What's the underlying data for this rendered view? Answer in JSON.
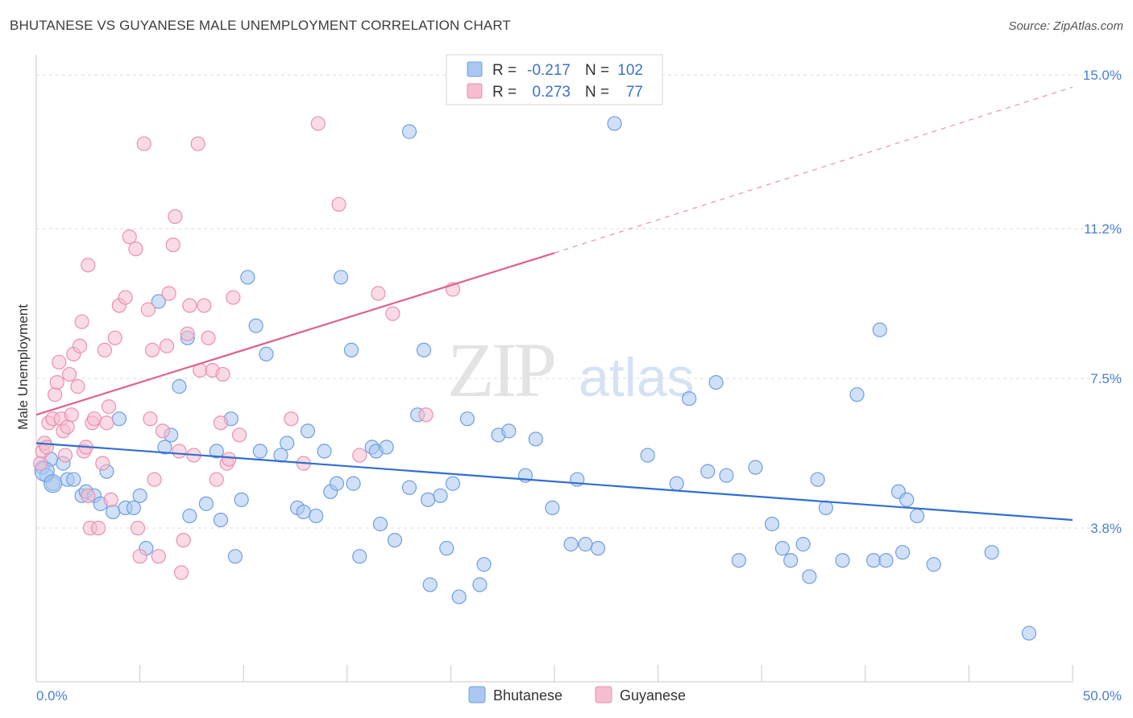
{
  "header": {
    "title": "BHUTANESE VS GUYANESE MALE UNEMPLOYMENT CORRELATION CHART",
    "source": "Source: ZipAtlas.com"
  },
  "watermark": {
    "zip": "ZIP",
    "atlas": "atlas"
  },
  "legend": {
    "rows": [
      {
        "r_label": "R =",
        "r_value": "-0.217",
        "n_label": "N =",
        "n_value": "102"
      },
      {
        "r_label": "R =",
        "r_value": "0.273",
        "n_label": "N =",
        "n_value": "77"
      }
    ]
  },
  "chart_data": {
    "type": "scatter",
    "title": "BHUTANESE VS GUYANESE MALE UNEMPLOYMENT CORRELATION CHART",
    "xlabel": "",
    "ylabel": "Male Unemployment",
    "xlim": [
      0,
      50
    ],
    "ylim": [
      0,
      15.5
    ],
    "x_tick_labels": [
      "0.0%",
      "50.0%"
    ],
    "y_ticks": [
      3.8,
      7.5,
      11.2,
      15.0
    ],
    "y_tick_labels": [
      "3.8%",
      "7.5%",
      "11.2%",
      "15.0%"
    ],
    "grid": true,
    "legend_position": "top-center",
    "series": [
      {
        "name": "Bhutanese",
        "color": "#a9c7f0",
        "edge": "#6e9fdf",
        "line_color": "#2f6fd0",
        "r": -0.217,
        "n": 102,
        "trend": {
          "x": [
            0,
            50
          ],
          "y": [
            5.9,
            4.0
          ]
        },
        "points": [
          [
            0.3,
            5.3
          ],
          [
            0.5,
            5.1
          ],
          [
            0.7,
            5.5
          ],
          [
            0.8,
            4.9
          ],
          [
            1.3,
            5.4
          ],
          [
            1.5,
            5.0
          ],
          [
            1.8,
            5.0
          ],
          [
            2.2,
            4.6
          ],
          [
            2.4,
            4.7
          ],
          [
            2.8,
            4.6
          ],
          [
            3.1,
            4.4
          ],
          [
            3.4,
            5.2
          ],
          [
            3.7,
            4.2
          ],
          [
            4.0,
            6.5
          ],
          [
            4.3,
            4.3
          ],
          [
            4.7,
            4.3
          ],
          [
            5.0,
            4.6
          ],
          [
            5.3,
            3.3
          ],
          [
            5.9,
            9.4
          ],
          [
            6.2,
            5.8
          ],
          [
            6.5,
            6.1
          ],
          [
            6.9,
            7.3
          ],
          [
            7.3,
            8.5
          ],
          [
            7.4,
            4.1
          ],
          [
            8.2,
            4.4
          ],
          [
            8.7,
            5.7
          ],
          [
            8.9,
            4.0
          ],
          [
            9.4,
            6.5
          ],
          [
            9.6,
            3.1
          ],
          [
            9.9,
            4.5
          ],
          [
            10.2,
            10.0
          ],
          [
            10.6,
            8.8
          ],
          [
            10.8,
            5.7
          ],
          [
            11.1,
            8.1
          ],
          [
            11.8,
            5.6
          ],
          [
            12.1,
            5.9
          ],
          [
            12.6,
            4.3
          ],
          [
            12.9,
            4.2
          ],
          [
            13.1,
            6.2
          ],
          [
            13.5,
            4.1
          ],
          [
            13.9,
            5.7
          ],
          [
            14.2,
            4.7
          ],
          [
            14.5,
            4.9
          ],
          [
            14.7,
            10.0
          ],
          [
            15.2,
            8.2
          ],
          [
            15.3,
            4.9
          ],
          [
            15.6,
            3.1
          ],
          [
            16.2,
            5.8
          ],
          [
            16.4,
            5.7
          ],
          [
            16.6,
            3.9
          ],
          [
            16.9,
            5.8
          ],
          [
            17.3,
            3.5
          ],
          [
            18.0,
            13.6
          ],
          [
            18.0,
            4.8
          ],
          [
            18.4,
            6.6
          ],
          [
            18.7,
            8.2
          ],
          [
            18.9,
            4.5
          ],
          [
            19.0,
            2.4
          ],
          [
            19.5,
            4.6
          ],
          [
            19.8,
            3.3
          ],
          [
            20.1,
            4.9
          ],
          [
            20.4,
            2.1
          ],
          [
            20.8,
            6.5
          ],
          [
            21.4,
            2.4
          ],
          [
            21.6,
            2.9
          ],
          [
            22.3,
            6.1
          ],
          [
            22.8,
            6.2
          ],
          [
            23.6,
            5.1
          ],
          [
            24.1,
            6.0
          ],
          [
            24.9,
            4.3
          ],
          [
            25.8,
            3.4
          ],
          [
            26.1,
            5.0
          ],
          [
            26.5,
            3.4
          ],
          [
            27.1,
            3.3
          ],
          [
            27.9,
            13.8
          ],
          [
            29.5,
            5.6
          ],
          [
            30.9,
            4.9
          ],
          [
            31.5,
            7.0
          ],
          [
            32.4,
            5.2
          ],
          [
            32.8,
            7.4
          ],
          [
            33.3,
            5.1
          ],
          [
            33.9,
            3.0
          ],
          [
            34.7,
            5.3
          ],
          [
            35.5,
            3.9
          ],
          [
            36.0,
            3.3
          ],
          [
            36.4,
            3.0
          ],
          [
            37.0,
            3.4
          ],
          [
            37.3,
            2.6
          ],
          [
            37.7,
            5.0
          ],
          [
            38.1,
            4.3
          ],
          [
            38.9,
            3.0
          ],
          [
            39.6,
            7.1
          ],
          [
            40.4,
            3.0
          ],
          [
            40.7,
            8.7
          ],
          [
            41.0,
            3.0
          ],
          [
            41.6,
            4.7
          ],
          [
            41.8,
            3.2
          ],
          [
            42.0,
            4.5
          ],
          [
            42.5,
            4.1
          ],
          [
            43.3,
            2.9
          ],
          [
            46.1,
            3.2
          ],
          [
            47.9,
            1.2
          ]
        ]
      },
      {
        "name": "Guyanese",
        "color": "#f6bdd0",
        "edge": "#ea8fb1",
        "line_color": "#e0608c",
        "r": 0.273,
        "n": 77,
        "trend": {
          "x": [
            0,
            25
          ],
          "y": [
            6.6,
            10.6
          ]
        },
        "trend_extension": {
          "x": [
            25,
            50
          ],
          "y": [
            10.6,
            14.7
          ]
        },
        "points": [
          [
            0.2,
            5.4
          ],
          [
            0.3,
            5.7
          ],
          [
            0.4,
            5.9
          ],
          [
            0.5,
            5.8
          ],
          [
            0.6,
            6.4
          ],
          [
            0.8,
            6.5
          ],
          [
            0.9,
            7.1
          ],
          [
            1.0,
            7.4
          ],
          [
            1.1,
            7.9
          ],
          [
            1.2,
            6.5
          ],
          [
            1.3,
            6.2
          ],
          [
            1.4,
            5.6
          ],
          [
            1.5,
            6.3
          ],
          [
            1.6,
            7.6
          ],
          [
            1.7,
            6.6
          ],
          [
            1.8,
            8.1
          ],
          [
            2.0,
            7.3
          ],
          [
            2.1,
            8.3
          ],
          [
            2.2,
            8.9
          ],
          [
            2.3,
            5.7
          ],
          [
            2.4,
            5.8
          ],
          [
            2.5,
            4.6
          ],
          [
            2.5,
            10.3
          ],
          [
            2.6,
            3.8
          ],
          [
            2.7,
            6.4
          ],
          [
            2.8,
            6.5
          ],
          [
            3.0,
            3.8
          ],
          [
            3.2,
            5.4
          ],
          [
            3.3,
            8.2
          ],
          [
            3.4,
            6.4
          ],
          [
            3.5,
            6.8
          ],
          [
            3.6,
            4.5
          ],
          [
            3.8,
            8.5
          ],
          [
            4.0,
            9.3
          ],
          [
            4.3,
            9.5
          ],
          [
            4.5,
            11.0
          ],
          [
            4.8,
            10.7
          ],
          [
            4.9,
            3.8
          ],
          [
            5.0,
            3.1
          ],
          [
            5.2,
            13.3
          ],
          [
            5.4,
            9.2
          ],
          [
            5.5,
            6.5
          ],
          [
            5.6,
            8.2
          ],
          [
            5.7,
            5.0
          ],
          [
            5.9,
            3.1
          ],
          [
            6.1,
            6.2
          ],
          [
            6.3,
            8.3
          ],
          [
            6.4,
            9.6
          ],
          [
            6.6,
            10.8
          ],
          [
            6.7,
            11.5
          ],
          [
            6.9,
            5.7
          ],
          [
            7.0,
            2.7
          ],
          [
            7.1,
            3.5
          ],
          [
            7.3,
            8.6
          ],
          [
            7.4,
            9.3
          ],
          [
            7.6,
            5.6
          ],
          [
            7.8,
            13.3
          ],
          [
            7.9,
            7.7
          ],
          [
            8.1,
            9.3
          ],
          [
            8.3,
            8.5
          ],
          [
            8.5,
            7.7
          ],
          [
            8.7,
            5.0
          ],
          [
            8.9,
            6.4
          ],
          [
            9.0,
            7.6
          ],
          [
            9.2,
            5.4
          ],
          [
            9.3,
            5.5
          ],
          [
            9.5,
            9.5
          ],
          [
            12.3,
            6.5
          ],
          [
            12.9,
            5.4
          ],
          [
            13.6,
            13.8
          ],
          [
            14.6,
            11.8
          ],
          [
            15.6,
            5.6
          ],
          [
            16.5,
            9.6
          ],
          [
            17.2,
            9.1
          ],
          [
            18.8,
            6.6
          ],
          [
            20.1,
            9.7
          ],
          [
            9.8,
            6.1
          ]
        ]
      }
    ]
  }
}
